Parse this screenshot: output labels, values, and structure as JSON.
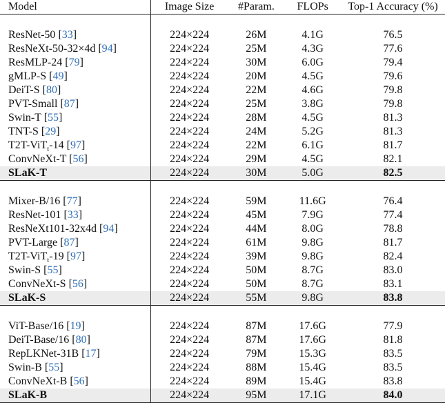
{
  "columns": [
    "Model",
    "Image Size",
    "#Param.",
    "FLOPs",
    "Top-1 Accuracy (%)"
  ],
  "groups": [
    [
      {
        "name": "ResNet-50 ",
        "ref": "33",
        "size": "224×224",
        "params": "26M",
        "flops": "4.1G",
        "acc": "76.5"
      },
      {
        "name": "ResNeXt-50-32×4d ",
        "ref": "94",
        "size": "224×224",
        "params": "25M",
        "flops": "4.3G",
        "acc": "77.6"
      },
      {
        "name": "ResMLP-24 ",
        "ref": "79",
        "size": "224×224",
        "params": "30M",
        "flops": "6.0G",
        "acc": "79.4"
      },
      {
        "name": "gMLP-S ",
        "ref": "49",
        "size": "224×224",
        "params": "20M",
        "flops": "4.5G",
        "acc": "79.6"
      },
      {
        "name": "DeiT-S ",
        "ref": "80",
        "size": "224×224",
        "params": "22M",
        "flops": "4.6G",
        "acc": "79.8"
      },
      {
        "name": "PVT-Small ",
        "ref": "87",
        "size": "224×224",
        "params": "25M",
        "flops": "3.8G",
        "acc": "79.8"
      },
      {
        "name": "Swin-T ",
        "ref": "55",
        "size": "224×224",
        "params": "28M",
        "flops": "4.5G",
        "acc": "81.3"
      },
      {
        "name": "TNT-S ",
        "ref": "29",
        "size": "224×224",
        "params": "24M",
        "flops": "5.2G",
        "acc": "81.3"
      },
      {
        "name": "T2T-ViT",
        "sub": "t",
        "suffix": "-14 ",
        "ref": "97",
        "size": "224×224",
        "params": "22M",
        "flops": "6.1G",
        "acc": "81.7"
      },
      {
        "name": "ConvNeXt-T ",
        "ref": "56",
        "size": "224×224",
        "params": "29M",
        "flops": "4.5G",
        "acc": "82.1"
      },
      {
        "name": "SLaK-T",
        "size": "224×224",
        "params": "30M",
        "flops": "5.0G",
        "acc": "82.5",
        "highlight": true
      }
    ],
    [
      {
        "name": "Mixer-B/16 ",
        "ref": "77",
        "size": "224×224",
        "params": "59M",
        "flops": "11.6G",
        "acc": "76.4"
      },
      {
        "name": "ResNet-101 ",
        "ref": "33",
        "size": "224×224",
        "params": "45M",
        "flops": "7.9G",
        "acc": "77.4"
      },
      {
        "name": "ResNeXt101-32x4d ",
        "ref": "94",
        "size": "224×224",
        "params": "44M",
        "flops": "8.0G",
        "acc": "78.8"
      },
      {
        "name": "PVT-Large ",
        "ref": "87",
        "size": "224×224",
        "params": "61M",
        "flops": "9.8G",
        "acc": "81.7"
      },
      {
        "name": "T2T-ViT",
        "sub": "t",
        "suffix": "-19 ",
        "ref": "97",
        "size": "224×224",
        "params": "39M",
        "flops": "9.8G",
        "acc": "82.4"
      },
      {
        "name": "Swin-S ",
        "ref": "55",
        "size": "224×224",
        "params": "50M",
        "flops": "8.7G",
        "acc": "83.0"
      },
      {
        "name": "ConvNeXt-S ",
        "ref": "56",
        "size": "224×224",
        "params": "50M",
        "flops": "8.7G",
        "acc": "83.1"
      },
      {
        "name": "SLaK-S",
        "size": "224×224",
        "params": "55M",
        "flops": "9.8G",
        "acc": "83.8",
        "highlight": true
      }
    ],
    [
      {
        "name": "ViT-Base/16 ",
        "ref": "19",
        "size": "224×224",
        "params": "87M",
        "flops": "17.6G",
        "acc": "77.9"
      },
      {
        "name": "DeiT-Base/16 ",
        "ref": "80",
        "size": "224×224",
        "params": "87M",
        "flops": "17.6G",
        "acc": "81.8"
      },
      {
        "name": "RepLKNet-31B ",
        "ref": "17",
        "size": "224×224",
        "params": "79M",
        "flops": "15.3G",
        "acc": "83.5"
      },
      {
        "name": "Swin-B ",
        "ref": "55",
        "size": "224×224",
        "params": "88M",
        "flops": "15.4G",
        "acc": "83.5"
      },
      {
        "name": "ConvNeXt-B ",
        "ref": "56",
        "size": "224×224",
        "params": "89M",
        "flops": "15.4G",
        "acc": "83.8"
      },
      {
        "name": "SLaK-B",
        "size": "224×224",
        "params": "95M",
        "flops": "17.1G",
        "acc": "84.0",
        "highlight": true
      }
    ]
  ]
}
